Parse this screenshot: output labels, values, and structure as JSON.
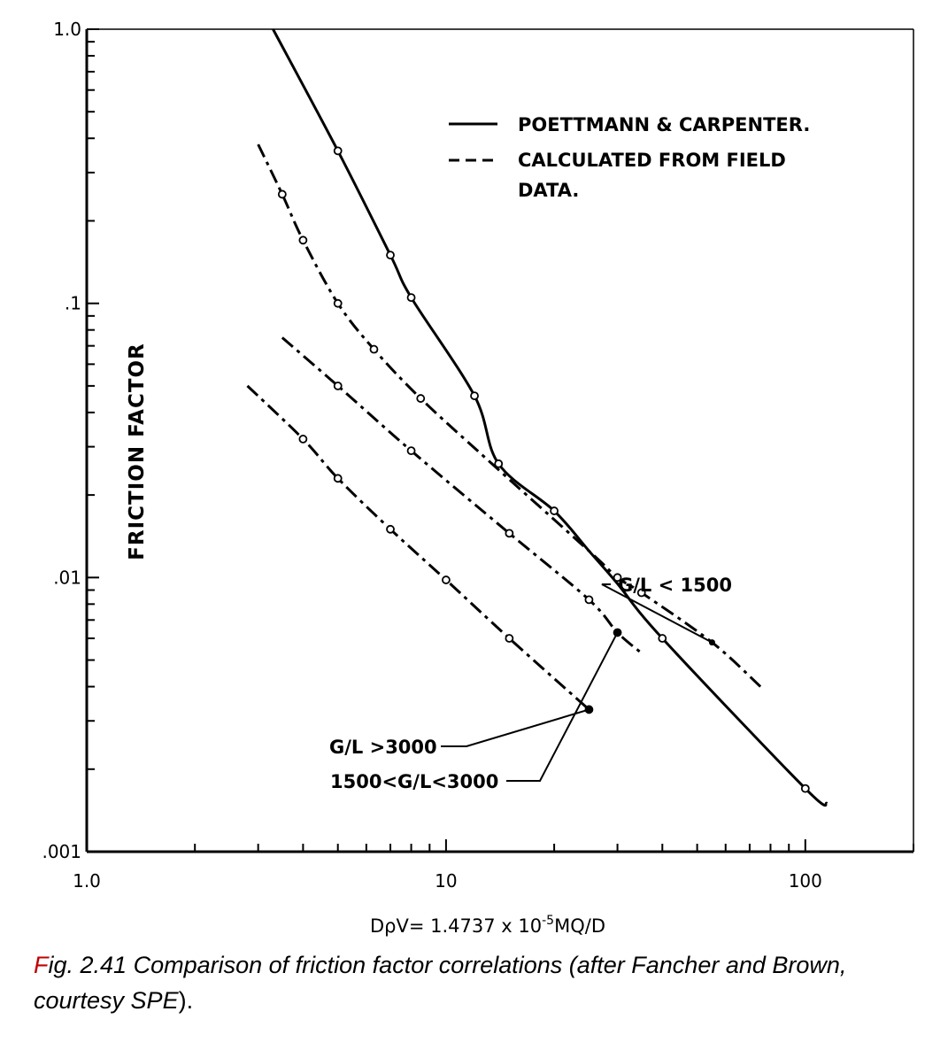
{
  "chart_data": {
    "type": "line",
    "x_scale": "log",
    "y_scale": "log",
    "xlim": [
      1.0,
      200
    ],
    "ylim": [
      0.001,
      1.0
    ],
    "x_tick_labels": [
      {
        "value": 1.0,
        "label": "1.0"
      },
      {
        "value": 10,
        "label": "10"
      },
      {
        "value": 100,
        "label": "100"
      }
    ],
    "y_tick_labels": [
      {
        "value": 1.0,
        "label": "1.0"
      },
      {
        "value": 0.1,
        "label": ".1"
      },
      {
        "value": 0.01,
        "label": ".01"
      },
      {
        "value": 0.001,
        "label": ".001"
      }
    ],
    "ylabel": "FRICTION FACTOR",
    "xlabel": "DρV= 1.4737 x 10⁻⁵MQ/D",
    "grid": false,
    "legend_position": "top-right",
    "legend": [
      {
        "style": "solid",
        "label": "POETTMANN & CARPENTER."
      },
      {
        "style": "dashed",
        "label": "CALCULATED FROM FIELD",
        "label2": "DATA."
      }
    ],
    "series": [
      {
        "name": "POETTMANN & CARPENTER.",
        "style": "solid",
        "points": [
          [
            3.3,
            1.0
          ],
          [
            5,
            0.36
          ],
          [
            7,
            0.15
          ],
          [
            8,
            0.105
          ],
          [
            12,
            0.046
          ],
          [
            14,
            0.026
          ],
          [
            20,
            0.0175
          ],
          [
            25,
            0.0125
          ],
          [
            30,
            0.0095
          ],
          [
            40,
            0.006
          ],
          [
            100,
            0.0017
          ],
          [
            115,
            0.0015
          ]
        ]
      },
      {
        "name": "G/L < 1500",
        "style": "dashed",
        "points": [
          [
            3,
            0.38
          ],
          [
            3.5,
            0.25
          ],
          [
            4,
            0.17
          ],
          [
            5,
            0.1
          ],
          [
            6.3,
            0.068
          ],
          [
            8.5,
            0.045
          ],
          [
            13,
            0.027
          ],
          [
            25,
            0.0125
          ],
          [
            30,
            0.01
          ],
          [
            35,
            0.0088
          ],
          [
            55,
            0.0058
          ],
          [
            75,
            0.004
          ]
        ]
      },
      {
        "name": "1500<G/L<3000",
        "style": "dashed",
        "points": [
          [
            3.5,
            0.075
          ],
          [
            5,
            0.05
          ],
          [
            8,
            0.029
          ],
          [
            15,
            0.0145
          ],
          [
            25,
            0.0083
          ],
          [
            30,
            0.0063
          ],
          [
            35,
            0.0053
          ]
        ]
      },
      {
        "name": "G/L >3000",
        "style": "dashed",
        "points": [
          [
            2.8,
            0.05
          ],
          [
            4,
            0.032
          ],
          [
            5,
            0.023
          ],
          [
            7,
            0.015
          ],
          [
            10,
            0.0098
          ],
          [
            15,
            0.006
          ],
          [
            25,
            0.0033
          ]
        ]
      }
    ],
    "markers": [
      {
        "series": "POETTMANN & CARPENTER.",
        "points": [
          [
            5,
            0.36
          ],
          [
            7,
            0.15
          ],
          [
            8,
            0.105
          ],
          [
            12,
            0.046
          ],
          [
            14,
            0.026
          ],
          [
            20,
            0.0175
          ],
          [
            40,
            0.006
          ],
          [
            100,
            0.0017
          ]
        ]
      },
      {
        "series": "G/L < 1500",
        "points": [
          [
            3.5,
            0.25
          ],
          [
            4,
            0.17
          ],
          [
            5,
            0.1
          ],
          [
            6.3,
            0.068
          ],
          [
            8.5,
            0.045
          ],
          [
            30,
            0.01
          ],
          [
            35,
            0.0088
          ]
        ]
      },
      {
        "series": "1500<G/L<3000",
        "points": [
          [
            5,
            0.05
          ],
          [
            8,
            0.029
          ],
          [
            15,
            0.0145
          ],
          [
            25,
            0.0083
          ],
          [
            30,
            0.0063
          ]
        ]
      },
      {
        "series": "G/L >3000",
        "points": [
          [
            4,
            0.032
          ],
          [
            5,
            0.023
          ],
          [
            7,
            0.015
          ],
          [
            10,
            0.0098
          ],
          [
            15,
            0.006
          ],
          [
            25,
            0.0033
          ]
        ]
      }
    ],
    "annotations": [
      {
        "text": "G/L < 1500",
        "target": [
          55,
          0.0058
        ]
      },
      {
        "text": "G/L >3000",
        "target": [
          25,
          0.0033
        ]
      },
      {
        "text": "1500<G/L<3000",
        "target": [
          30,
          0.0063
        ]
      }
    ]
  },
  "caption": {
    "fig_prefix": "F",
    "fig_rest": "ig. 2.41    Comparison of friction factor correlations (after Fancher and Brown, courtesy ",
    "spe": "SPE",
    "end": ")."
  }
}
